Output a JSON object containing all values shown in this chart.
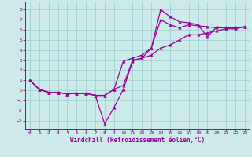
{
  "title": "",
  "xlabel": "Windchill (Refroidissement éolien,°C)",
  "ylabel": "",
  "bg_color": "#cceaea",
  "line_color": "#990099",
  "grid_color": "#99cccc",
  "xlim": [
    -0.5,
    23.5
  ],
  "ylim": [
    -3.8,
    8.8
  ],
  "xticks": [
    0,
    1,
    2,
    3,
    4,
    5,
    6,
    7,
    8,
    9,
    10,
    11,
    12,
    13,
    14,
    15,
    16,
    17,
    18,
    19,
    20,
    21,
    22,
    23
  ],
  "yticks": [
    -3,
    -2,
    -1,
    0,
    1,
    2,
    3,
    4,
    5,
    6,
    7,
    8
  ],
  "line1_x": [
    0,
    1,
    2,
    3,
    4,
    5,
    6,
    7,
    8,
    9,
    10,
    11,
    12,
    13,
    14,
    15,
    16,
    17,
    18,
    19,
    20,
    21,
    22,
    23
  ],
  "line1_y": [
    1.0,
    0.1,
    -0.2,
    -0.2,
    -0.35,
    -0.3,
    -0.3,
    -0.5,
    -0.5,
    0.1,
    0.5,
    3.0,
    3.2,
    4.2,
    8.0,
    7.3,
    6.8,
    6.7,
    6.5,
    5.3,
    6.3,
    6.2,
    6.2,
    6.3
  ],
  "line2_x": [
    0,
    1,
    2,
    3,
    4,
    5,
    6,
    7,
    8,
    9,
    10,
    11,
    12,
    13,
    14,
    15,
    16,
    17,
    18,
    19,
    20,
    21,
    22,
    23
  ],
  "line2_y": [
    1.0,
    0.1,
    -0.2,
    -0.2,
    -0.35,
    -0.3,
    -0.3,
    -0.5,
    -3.3,
    -1.7,
    0.1,
    2.9,
    3.2,
    3.5,
    4.2,
    4.5,
    5.0,
    5.5,
    5.5,
    5.7,
    5.9,
    6.1,
    6.1,
    6.3
  ],
  "line3_x": [
    0,
    1,
    2,
    3,
    4,
    5,
    6,
    7,
    8,
    9,
    10,
    11,
    12,
    13,
    14,
    15,
    16,
    17,
    18,
    19,
    20,
    21,
    22,
    23
  ],
  "line3_y": [
    1.0,
    0.1,
    -0.2,
    -0.2,
    -0.35,
    -0.3,
    -0.3,
    -0.5,
    -0.5,
    0.1,
    2.9,
    3.2,
    3.5,
    4.2,
    7.0,
    6.5,
    6.2,
    6.5,
    6.4,
    6.3,
    6.2,
    6.2,
    6.2,
    6.3
  ],
  "marker": "^",
  "marker_size": 2.5,
  "line_width": 0.9,
  "tick_fontsize": 4.5,
  "label_fontsize": 5.5
}
